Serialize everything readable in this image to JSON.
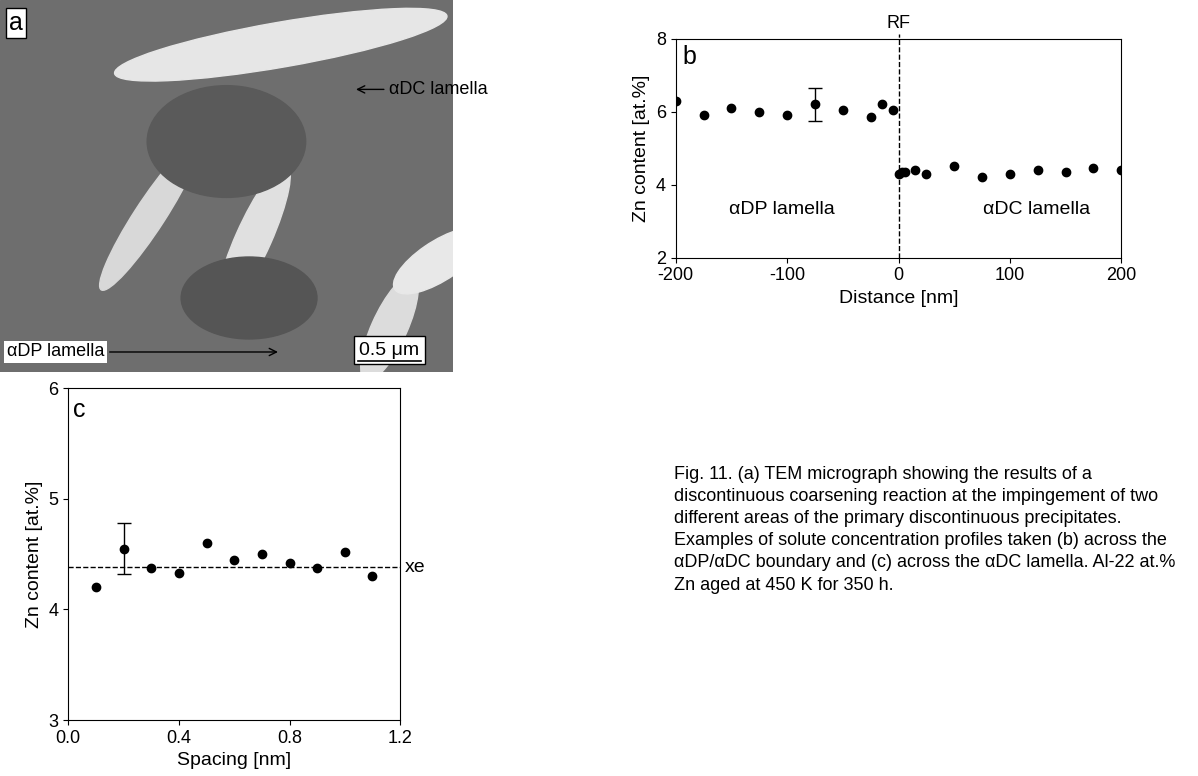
{
  "micrograph": {
    "panel_label": "a",
    "labels": [
      "αDC lamella",
      "αDP lamella"
    ],
    "scale_bar": "0.5 μm"
  },
  "chart_data": [
    {
      "type": "scatter",
      "panel_label": "b",
      "x": [
        -200,
        -175,
        -150,
        -125,
        -100,
        -75,
        -50,
        -25,
        -15,
        -5,
        0,
        3,
        6,
        15,
        25,
        50,
        75,
        100,
        125,
        150,
        175,
        200
      ],
      "values": [
        6.3,
        5.9,
        6.1,
        6.0,
        5.9,
        6.2,
        6.05,
        5.85,
        6.2,
        6.05,
        4.3,
        4.35,
        4.35,
        4.4,
        4.3,
        4.5,
        4.2,
        4.3,
        4.4,
        4.35,
        4.45,
        4.4
      ],
      "error_bars": [
        {
          "x": -75,
          "value": 6.2,
          "error": 0.45
        }
      ],
      "xlim": [
        -200,
        200
      ],
      "xticks": [
        -200,
        -100,
        0,
        100,
        200
      ],
      "ylim": [
        2,
        8
      ],
      "yticks": [
        2,
        4,
        6,
        8
      ],
      "x_label": "Distance [nm]",
      "y_label": "Zn content [at.%]",
      "reference_line": {
        "x": 0,
        "label": "RF"
      },
      "region_labels": [
        "αDP lamella",
        "αDC lamella"
      ],
      "color": "#000000",
      "marker": "circle"
    },
    {
      "type": "scatter",
      "panel_label": "c",
      "x": [
        0.1,
        0.2,
        0.3,
        0.4,
        0.5,
        0.6,
        0.7,
        0.8,
        0.9,
        1.0,
        1.1
      ],
      "values": [
        4.2,
        4.55,
        4.37,
        4.33,
        4.6,
        4.45,
        4.5,
        4.42,
        4.37,
        4.52,
        4.3
      ],
      "error_bars": [
        {
          "x": 0.2,
          "value": 4.55,
          "error": 0.23
        }
      ],
      "xlim": [
        0,
        1.2
      ],
      "xticks": [
        {
          "value": 0,
          "label": "0.0"
        },
        0.4,
        0.8,
        1.2
      ],
      "ylim": [
        3,
        6
      ],
      "yticks": [
        3,
        4,
        5,
        6
      ],
      "x_label": "Spacing [nm]",
      "y_label": "Zn content [at.%]",
      "reference_line": {
        "y": 4.38,
        "label": "xe"
      },
      "color": "#000000",
      "marker": "circle"
    }
  ],
  "caption": "Fig. 11. (a) TEM micrograph showing the results of a discontinuous coarsening reaction at the impingement of two different areas of the primary discontinuous precipitates. Examples of solute concentration profiles taken (b) across the αDP/αDC boundary and (c) across the αDC lamella. Al-22 at.% Zn aged at 450 K for 350 h."
}
